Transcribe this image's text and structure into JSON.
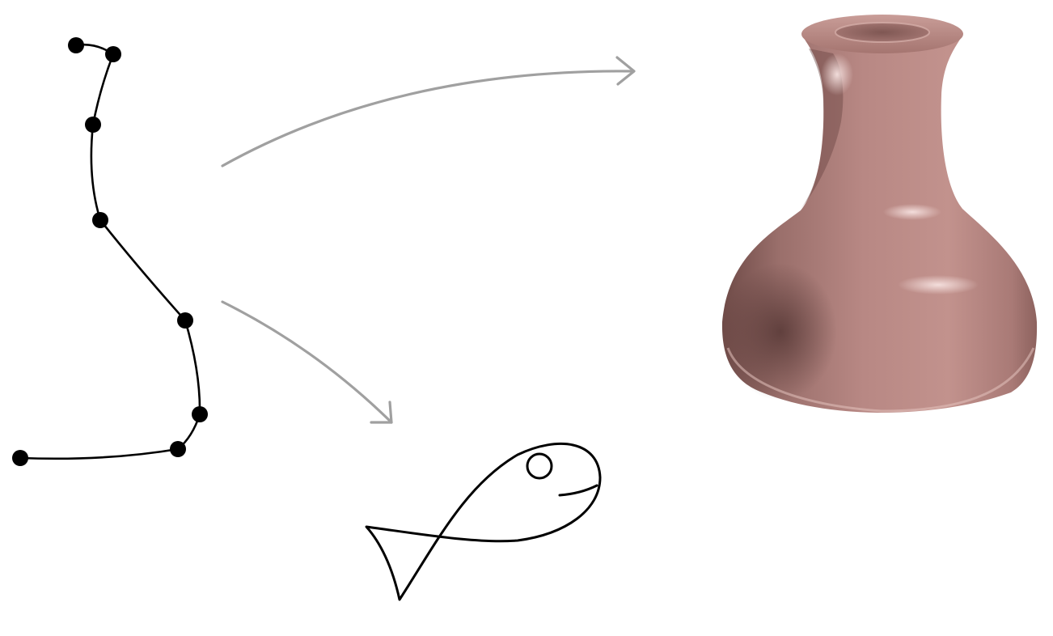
{
  "diagram": {
    "colors": {
      "background": "#ffffff",
      "curve": "#000000",
      "control_point": "#000000",
      "arrow": "#a0a0a0",
      "vase_body": "#b4847f",
      "vase_shadow": "#6e4a47",
      "vase_highlight": "#f3dcda",
      "fish_outline": "#000000"
    },
    "profile_curve": {
      "description": "",
      "control_point_count": 8
    },
    "outputs": [
      {
        "kind": "surface-of-revolution"
      },
      {
        "kind": "fish-sketch"
      }
    ]
  }
}
